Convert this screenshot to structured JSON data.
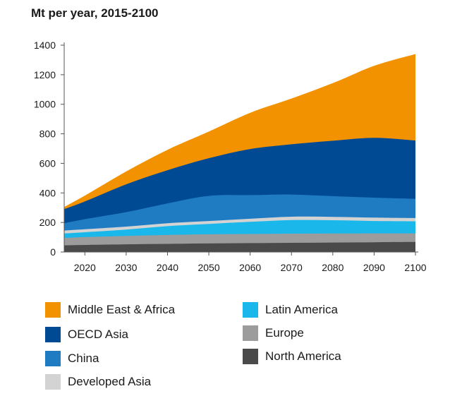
{
  "chart_data": {
    "type": "area",
    "stacked": true,
    "title": "Mt per year, 2015-2100",
    "xlabel": "",
    "ylabel": "",
    "xlim": [
      2015,
      2100
    ],
    "ylim": [
      0,
      1400
    ],
    "x_ticks": [
      2020,
      2030,
      2040,
      2050,
      2060,
      2070,
      2080,
      2090,
      2100
    ],
    "y_ticks": [
      0,
      200,
      400,
      600,
      800,
      1000,
      1200,
      1400
    ],
    "x": [
      2015,
      2020,
      2030,
      2040,
      2050,
      2060,
      2070,
      2080,
      2090,
      2100
    ],
    "series": [
      {
        "name": "North America",
        "color": "#4a4a4a",
        "values": [
          45,
          48,
          52,
          55,
          58,
          60,
          62,
          64,
          66,
          68
        ]
      },
      {
        "name": "Europe",
        "color": "#9c9c9c",
        "values": [
          50,
          53,
          57,
          60,
          62,
          62,
          62,
          61,
          60,
          58
        ]
      },
      {
        "name": "Latin America",
        "color": "#1ab7ea",
        "values": [
          30,
          33,
          43,
          60,
          70,
          82,
          92,
          90,
          84,
          82
        ]
      },
      {
        "name": "Developed Asia",
        "color": "#d3d3d3",
        "values": [
          20,
          20,
          20,
          20,
          20,
          21,
          23,
          23,
          23,
          22
        ]
      },
      {
        "name": "China",
        "color": "#1f7cc2",
        "values": [
          50,
          68,
          98,
          134,
          170,
          160,
          150,
          140,
          135,
          130
        ]
      },
      {
        "name": "OECD Asia",
        "color": "#004a93",
        "values": [
          95,
          120,
          188,
          225,
          255,
          312,
          340,
          375,
          405,
          395
        ]
      },
      {
        "name": "Middle East & Africa",
        "color": "#f39200",
        "values": [
          15,
          40,
          87,
          138,
          180,
          245,
          310,
          390,
          487,
          585
        ]
      }
    ]
  },
  "legend": {
    "items": [
      {
        "label": "Middle East & Africa",
        "color": "#f39200"
      },
      {
        "label": "OECD Asia",
        "color": "#004a93"
      },
      {
        "label": "China",
        "color": "#1f7cc2"
      },
      {
        "label": "Developed Asia",
        "color": "#d3d3d3"
      },
      {
        "label": "Latin America",
        "color": "#1ab7ea"
      },
      {
        "label": "Europe",
        "color": "#9c9c9c"
      },
      {
        "label": "North America",
        "color": "#4a4a4a"
      }
    ]
  }
}
